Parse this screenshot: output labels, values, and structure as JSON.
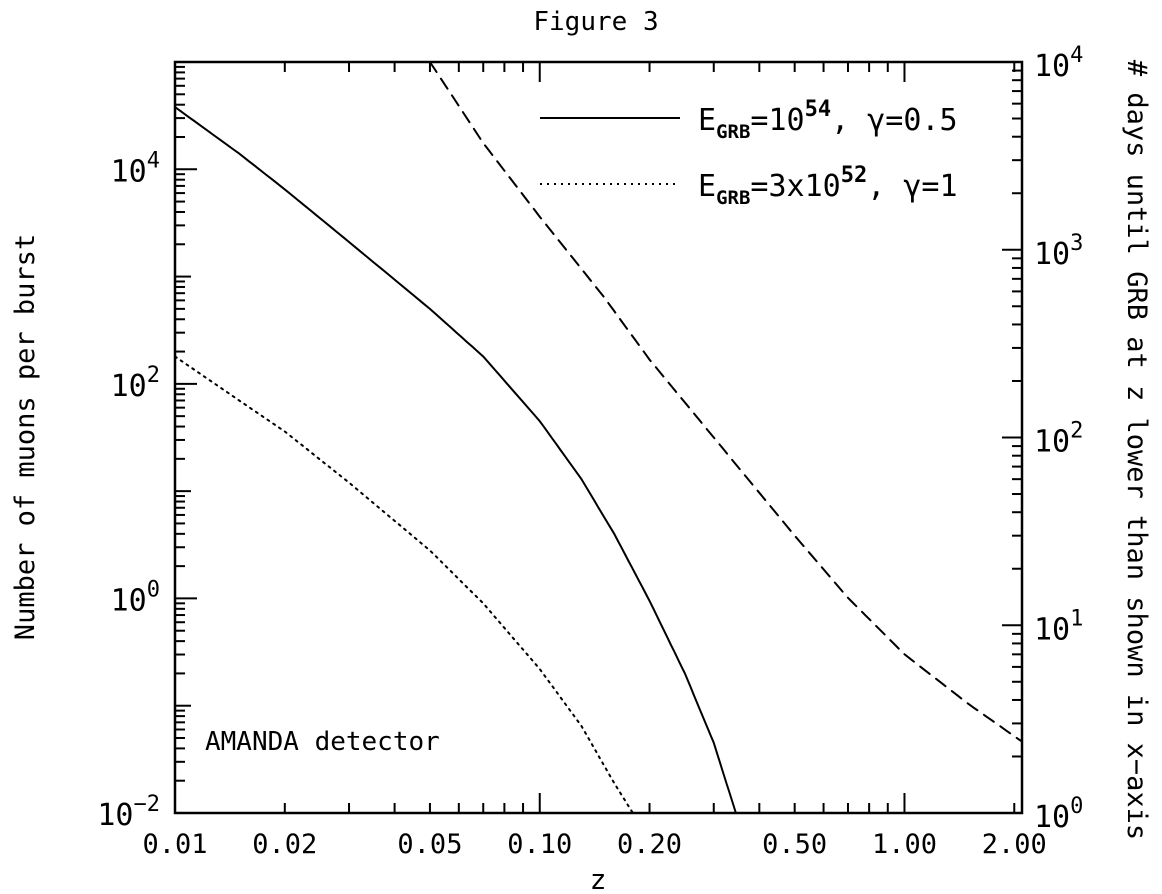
{
  "chart_data": {
    "type": "line",
    "title": "Figure 3",
    "xlabel": "z",
    "ylabel": "Number of muons per burst",
    "y2label": "# days until GRB at z lower than shown in x−axis",
    "xscale": "log",
    "yscale": "log",
    "y2scale": "log",
    "xlim": [
      0.01,
      2.1
    ],
    "ylim": [
      0.01,
      100000
    ],
    "y2lim": [
      1,
      10000
    ],
    "x_ticks": [
      {
        "value": 0.01,
        "label": "0.01"
      },
      {
        "value": 0.02,
        "label": "0.02"
      },
      {
        "value": 0.05,
        "label": "0.05"
      },
      {
        "value": 0.1,
        "label": "0.10"
      },
      {
        "value": 0.2,
        "label": "0.20"
      },
      {
        "value": 0.5,
        "label": "0.50"
      },
      {
        "value": 1.0,
        "label": "1.00"
      },
      {
        "value": 2.0,
        "label": "2.00"
      }
    ],
    "y_ticks": [
      {
        "value": 0.01,
        "base": "10",
        "exp": "−2"
      },
      {
        "value": 1,
        "base": "10",
        "exp": "0"
      },
      {
        "value": 100,
        "base": "10",
        "exp": "2"
      },
      {
        "value": 10000,
        "base": "10",
        "exp": "4"
      }
    ],
    "y2_ticks": [
      {
        "value": 1,
        "base": "10",
        "exp": "0"
      },
      {
        "value": 10,
        "base": "10",
        "exp": "1"
      },
      {
        "value": 100,
        "base": "10",
        "exp": "2"
      },
      {
        "value": 1000,
        "base": "10",
        "exp": "3"
      },
      {
        "value": 10000,
        "base": "10",
        "exp": "4"
      }
    ],
    "series": [
      {
        "label_main": "E",
        "label_sub": "GRB",
        "label_eq": "=10",
        "label_sup": "54",
        "label_tail": ", γ=0.5",
        "style": "solid",
        "axis": "left",
        "x": [
          0.01,
          0.015,
          0.02,
          0.03,
          0.05,
          0.07,
          0.1,
          0.13,
          0.16,
          0.2,
          0.25,
          0.3,
          0.345
        ],
        "y": [
          38000,
          14000,
          6500,
          2100,
          500,
          180,
          45,
          13,
          4,
          0.95,
          0.2,
          0.045,
          0.01
        ]
      },
      {
        "label_main": "E",
        "label_sub": "GRB",
        "label_eq": "=3x10",
        "label_sup": "52",
        "label_tail": ", γ=1",
        "style": "dotted",
        "axis": "left",
        "x": [
          0.01,
          0.015,
          0.02,
          0.03,
          0.05,
          0.07,
          0.1,
          0.13,
          0.16,
          0.18
        ],
        "y": [
          180,
          70,
          36,
          12,
          2.8,
          0.9,
          0.22,
          0.065,
          0.019,
          0.01
        ]
      },
      {
        "style": "dashed",
        "axis": "right",
        "x": [
          0.05,
          0.07,
          0.1,
          0.15,
          0.2,
          0.3,
          0.5,
          0.7,
          1.0,
          1.5,
          2.1
        ],
        "y2": [
          10000,
          3700,
          1500,
          560,
          260,
          100,
          30,
          14,
          7,
          3.8,
          2.4
        ]
      }
    ],
    "annotation": "AMANDA detector",
    "legend_position": "top-right"
  }
}
